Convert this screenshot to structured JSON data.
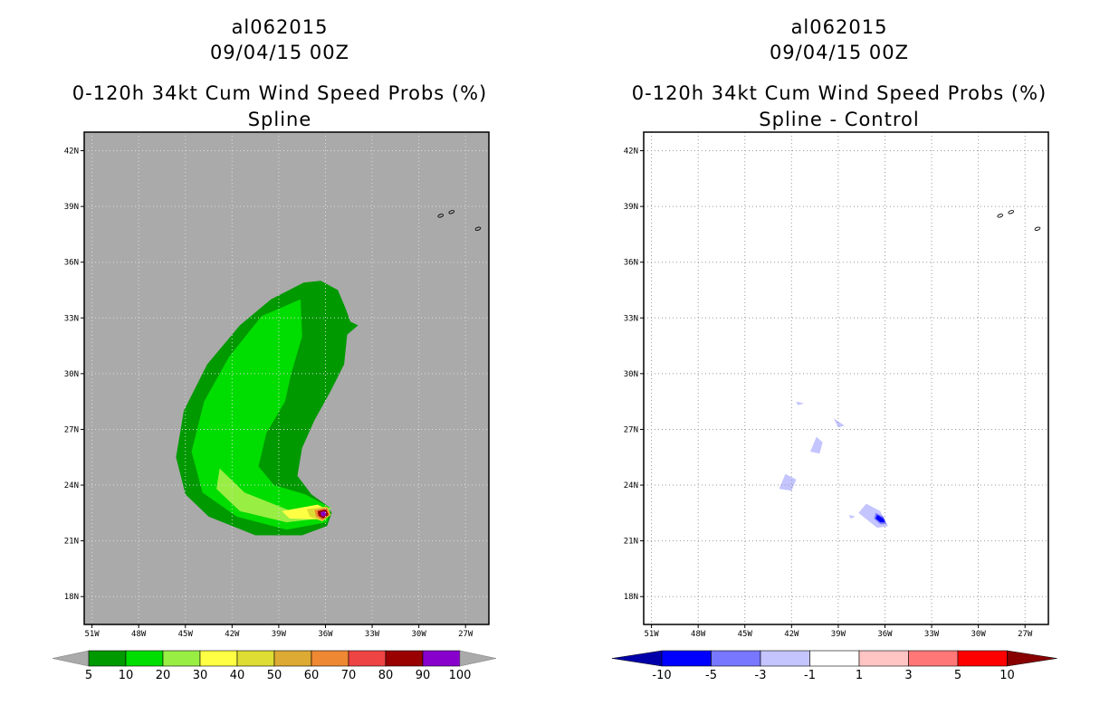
{
  "colors": {
    "gray_bg": "#aaaaaa",
    "prob": [
      "#009900",
      "#00dd00",
      "#99ee44",
      "#ffff44",
      "#dddd33",
      "#ddaa33",
      "#ee8833",
      "#ee4444",
      "#990000",
      "#8800cc"
    ],
    "diff": [
      "#0000aa",
      "#0000ff",
      "#7777ff",
      "#c4c4ff",
      "#ffffff",
      "#ffc4c4",
      "#ff7777",
      "#ff0000",
      "#880000"
    ]
  },
  "chart_data": [
    {
      "type": "heatmap",
      "title": "al062015",
      "date": "09/04/15 00Z",
      "subtitle": "0-120h 34kt Cum Wind Speed Probs (%)",
      "method": "Spline",
      "xlim": [
        -51.5,
        -25.5
      ],
      "ylim": [
        16.5,
        43
      ],
      "x_ticks": [
        "51W",
        "48W",
        "45W",
        "42W",
        "39W",
        "36W",
        "33W",
        "30W",
        "27W"
      ],
      "y_ticks": [
        "42N",
        "39N",
        "36N",
        "33N",
        "30N",
        "27N",
        "24N",
        "21N",
        "18N"
      ],
      "colorbar": {
        "labels": [
          "5",
          "10",
          "20",
          "30",
          "40",
          "50",
          "60",
          "70",
          "80",
          "90",
          "100"
        ]
      },
      "contours": [
        {
          "level": 5,
          "polygon": [
            [
              -36.3,
              35
            ],
            [
              -35.2,
              34.5
            ],
            [
              -34.7,
              33.5
            ],
            [
              -34.4,
              32.8
            ],
            [
              -33.9,
              32.6
            ],
            [
              -34.6,
              32.1
            ],
            [
              -34.8,
              30.5
            ],
            [
              -35.7,
              29
            ],
            [
              -36.7,
              27.5
            ],
            [
              -37.5,
              26
            ],
            [
              -37.8,
              24.5
            ],
            [
              -36.9,
              23.5
            ],
            [
              -35.9,
              22.9
            ],
            [
              -35.6,
              22.5
            ],
            [
              -35.9,
              21.8
            ],
            [
              -37.5,
              21.3
            ],
            [
              -40.5,
              21.3
            ],
            [
              -43.5,
              22.3
            ],
            [
              -45,
              23.5
            ],
            [
              -45.6,
              25.5
            ],
            [
              -45.1,
              28
            ],
            [
              -43.6,
              30.5
            ],
            [
              -41.5,
              32.6
            ],
            [
              -39.5,
              34
            ],
            [
              -37.4,
              34.9
            ]
          ]
        },
        {
          "level": 10,
          "polygon": [
            [
              -37.6,
              34
            ],
            [
              -37.5,
              32
            ],
            [
              -38.2,
              30
            ],
            [
              -38.6,
              28.5
            ],
            [
              -39.8,
              26.8
            ],
            [
              -40.3,
              25
            ],
            [
              -39.3,
              24
            ],
            [
              -37.3,
              23.5
            ],
            [
              -35.7,
              22.8
            ],
            [
              -35.9,
              22
            ],
            [
              -38.5,
              21.6
            ],
            [
              -41.7,
              22.3
            ],
            [
              -43.9,
              23.6
            ],
            [
              -44.6,
              25.8
            ],
            [
              -43.8,
              28.5
            ],
            [
              -42.2,
              30.9
            ],
            [
              -40.1,
              33.1
            ]
          ]
        },
        {
          "level": 20,
          "polygon": [
            [
              -42.8,
              24.9
            ],
            [
              -41.2,
              23.6
            ],
            [
              -38.2,
              22.6
            ],
            [
              -35.6,
              22.8
            ],
            [
              -36.4,
              22.2
            ],
            [
              -38.5,
              22
            ],
            [
              -41.5,
              22.6
            ],
            [
              -43,
              23.8
            ]
          ]
        },
        {
          "level": 30,
          "polygon": [
            [
              -38.8,
              22.6
            ],
            [
              -36.5,
              22.95
            ],
            [
              -35.7,
              22.6
            ],
            [
              -36.3,
              22.15
            ],
            [
              -38.3,
              22.2
            ]
          ]
        },
        {
          "level": 40,
          "polygon": [
            [
              -37.2,
              22.7
            ],
            [
              -35.9,
              22.85
            ],
            [
              -35.65,
              22.4
            ],
            [
              -36.2,
              22.05
            ],
            [
              -37,
              22.3
            ]
          ]
        },
        {
          "level": 60,
          "polygon": [
            [
              -36.7,
              22.65
            ],
            [
              -35.9,
              22.8
            ],
            [
              -35.7,
              22.4
            ],
            [
              -36.2,
              22.1
            ],
            [
              -36.6,
              22.3
            ]
          ]
        },
        {
          "level": 80,
          "polygon": [
            [
              -36.5,
              22.6
            ],
            [
              -35.95,
              22.7
            ],
            [
              -35.8,
              22.4
            ],
            [
              -36.15,
              22.2
            ],
            [
              -36.45,
              22.35
            ]
          ]
        },
        {
          "level": 90,
          "polygon": [
            [
              -36.3,
              22.55
            ],
            [
              -36,
              22.6
            ],
            [
              -35.95,
              22.4
            ],
            [
              -36.15,
              22.3
            ],
            [
              -36.3,
              22.4
            ]
          ]
        }
      ]
    },
    {
      "type": "heatmap",
      "title": "al062015",
      "date": "09/04/15 00Z",
      "subtitle": "0-120h 34kt Cum Wind Speed Probs (%)",
      "method": "Spline - Control",
      "xlim": [
        -51.5,
        -25.5
      ],
      "ylim": [
        16.5,
        43
      ],
      "x_ticks": [
        "51W",
        "48W",
        "45W",
        "42W",
        "39W",
        "36W",
        "33W",
        "30W",
        "27W"
      ],
      "y_ticks": [
        "42N",
        "39N",
        "36N",
        "33N",
        "30N",
        "27N",
        "24N",
        "21N",
        "18N"
      ],
      "colorbar": {
        "labels": [
          "-10",
          "-5",
          "-3",
          "-1",
          "1",
          "3",
          "5",
          "10"
        ]
      },
      "contours": [
        {
          "level": -1,
          "polygon": [
            [
              -42.4,
              24.6
            ],
            [
              -41.7,
              24.3
            ],
            [
              -42,
              23.7
            ],
            [
              -42.8,
              23.8
            ]
          ]
        },
        {
          "level": -1,
          "polygon": [
            [
              -40.4,
              26.6
            ],
            [
              -40,
              26.3
            ],
            [
              -40.2,
              25.7
            ],
            [
              -40.8,
              25.8
            ]
          ]
        },
        {
          "level": -1,
          "polygon": [
            [
              -39.3,
              27.6
            ],
            [
              -38.6,
              27.2
            ],
            [
              -39,
              27.1
            ]
          ]
        },
        {
          "level": -1,
          "polygon": [
            [
              -41.7,
              28.5
            ],
            [
              -41.2,
              28.4
            ],
            [
              -41.6,
              28.3
            ]
          ]
        },
        {
          "level": -1,
          "polygon": [
            [
              -37.2,
              23
            ],
            [
              -36.3,
              22.6
            ],
            [
              -35.8,
              21.8
            ],
            [
              -36.5,
              21.7
            ],
            [
              -37.7,
              22.5
            ]
          ]
        },
        {
          "level": -1,
          "polygon": [
            [
              -38.3,
              22.4
            ],
            [
              -37.9,
              22.3
            ],
            [
              -38.2,
              22.2
            ]
          ]
        },
        {
          "level": -3,
          "polygon": [
            [
              -36.6,
              22.5
            ],
            [
              -36.1,
              22.3
            ],
            [
              -35.9,
              21.9
            ],
            [
              -36.3,
              21.9
            ],
            [
              -36.7,
              22.2
            ]
          ]
        },
        {
          "level": -5,
          "polygon": [
            [
              -36.5,
              22.4
            ],
            [
              -36.1,
              22.2
            ],
            [
              -36,
              22
            ],
            [
              -36.3,
              22
            ],
            [
              -36.6,
              22.2
            ]
          ]
        }
      ]
    }
  ]
}
